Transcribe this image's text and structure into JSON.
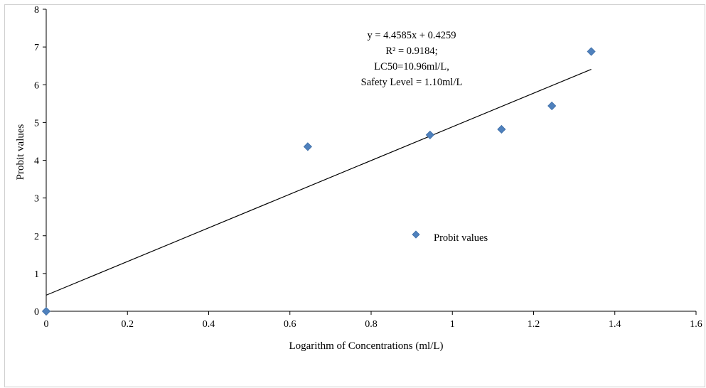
{
  "chart_data": {
    "type": "scatter",
    "xlabel": "Logarithm of Concentrations (ml/L)",
    "ylabel": "Probit values",
    "xlim": [
      0,
      1.6
    ],
    "ylim": [
      0,
      8
    ],
    "x_ticks": [
      "0",
      "0.2",
      "0.4",
      "0.6",
      "0.8",
      "1",
      "1.2",
      "1.4",
      "1.6"
    ],
    "y_ticks": [
      "0",
      "1",
      "2",
      "3",
      "4",
      "5",
      "6",
      "7",
      "8"
    ],
    "grid": false,
    "legend": {
      "position": "center-right",
      "entries": [
        "Probit values"
      ]
    },
    "series": [
      {
        "name": "Probit values",
        "color": "#4f81bd",
        "marker": "diamond",
        "points": [
          {
            "x": 0,
            "y": 0
          },
          {
            "x": 0.644,
            "y": 4.36
          },
          {
            "x": 0.945,
            "y": 4.67
          },
          {
            "x": 1.121,
            "y": 4.82
          },
          {
            "x": 1.245,
            "y": 5.44
          },
          {
            "x": 1.342,
            "y": 6.88
          }
        ]
      }
    ],
    "trendline": {
      "type": "linear",
      "slope": 4.4585,
      "intercept": 0.4259,
      "x_range": [
        0,
        1.342
      ],
      "color": "#000000"
    },
    "annotation": {
      "lines": [
        "y = 4.4585x + 0.4259",
        "R² = 0.9184;",
        "LC50=10.96ml/L,",
        "Safety Level = 1.10ml/L"
      ]
    }
  }
}
